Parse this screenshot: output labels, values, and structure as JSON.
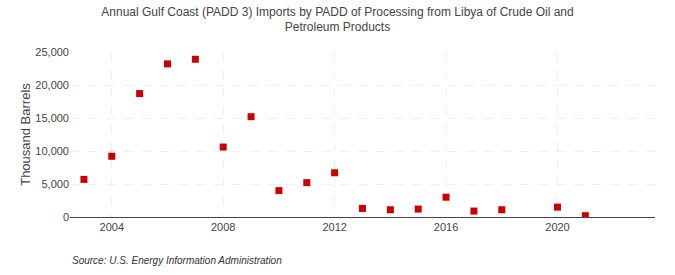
{
  "chart_data": {
    "type": "scatter",
    "title": "Annual Gulf Coast (PADD 3) Imports by PADD of Processing from Libya of Crude Oil and\nPetroleum Products",
    "ylabel": "Thousand Barrels",
    "annotations": [
      "Source: U.S. Energy Information Administration"
    ],
    "x": [
      2003,
      2004,
      2005,
      2006,
      2007,
      2008,
      2009,
      2010,
      2011,
      2012,
      2013,
      2014,
      2015,
      2016,
      2017,
      2018,
      2019,
      2020,
      2021,
      2022
    ],
    "values": [
      5700,
      9200,
      18700,
      23200,
      23900,
      10600,
      15200,
      4000,
      5200,
      6700,
      1300,
      1100,
      1200,
      3000,
      900,
      1100,
      null,
      1500,
      200,
      null
    ],
    "color": "#cc0000",
    "marker": "square",
    "grid": true,
    "xlim": [
      2002.5,
      2023.5
    ],
    "xticks": [
      2004,
      2008,
      2012,
      2016,
      2020
    ],
    "ylim": [
      0,
      25000
    ],
    "yticks": [
      0,
      {
        "value": 5000,
        "label": "5,000"
      },
      {
        "value": 10000,
        "label": "10,000"
      },
      {
        "value": 15000,
        "label": "15,000"
      },
      {
        "value": 20000,
        "label": "20,000"
      },
      {
        "value": 25000,
        "label": "25,000"
      }
    ]
  }
}
